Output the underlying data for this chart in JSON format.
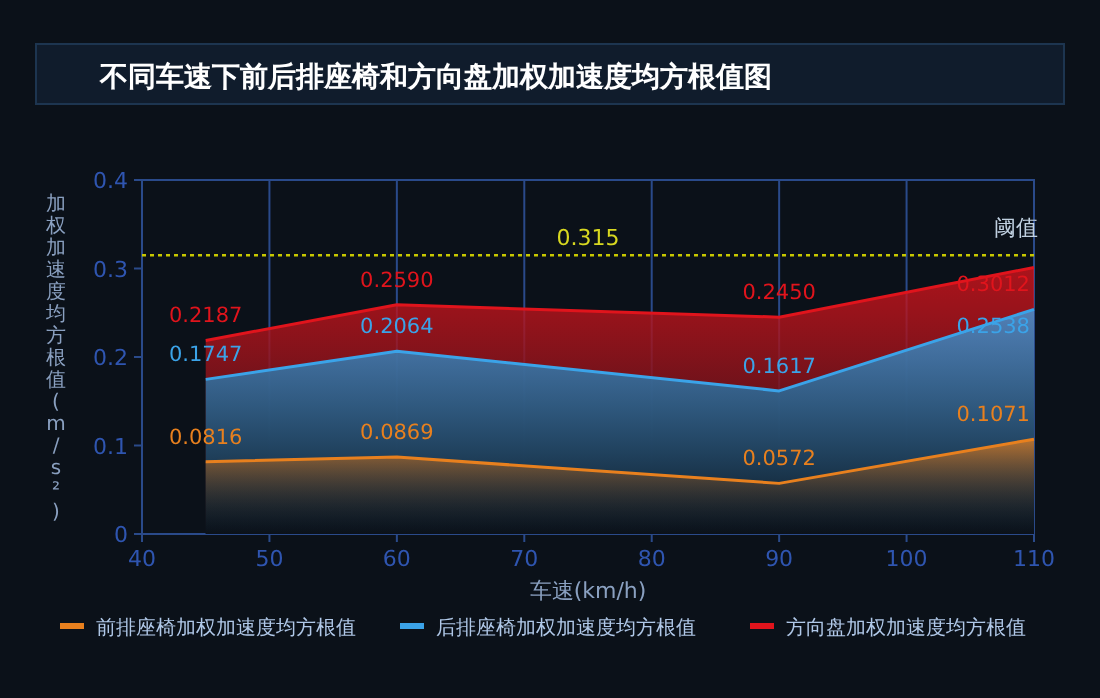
{
  "chart_data": {
    "type": "area",
    "title": "不同车速下前后排座椅和方向盘加权加速度均方根值图",
    "xlabel": "车速(km/h)",
    "ylabel": "加权加速度均方根值(m/s²)",
    "x": [
      45,
      60,
      90,
      110
    ],
    "series": [
      {
        "name": "前排座椅加权加速度均方根值",
        "color": "#e8801e",
        "values": [
          0.0816,
          0.0869,
          0.0572,
          0.1071
        ],
        "value_labels": [
          "0.0816",
          "0.0869",
          "0.0572",
          "0.1071"
        ]
      },
      {
        "name": "后排座椅加权加速度均方根值",
        "color": "#3ba3e8",
        "values": [
          0.1747,
          0.2064,
          0.1617,
          0.2538
        ],
        "value_labels": [
          "0.1747",
          "0.2064",
          "0.1617",
          "0.2538"
        ]
      },
      {
        "name": "方向盘加权加速度均方根值",
        "color": "#e0141c",
        "values": [
          0.2187,
          0.259,
          0.245,
          0.3012
        ],
        "value_labels": [
          "0.2187",
          "0.2590",
          "0.2450",
          "0.3012"
        ]
      }
    ],
    "xlim": [
      40,
      110
    ],
    "xticks": [
      40,
      50,
      60,
      70,
      80,
      90,
      100,
      110
    ],
    "ylim": [
      0,
      0.4
    ],
    "yticks": [
      0,
      0.1,
      0.2,
      0.3,
      0.4
    ],
    "grid": "x",
    "legend": "bottom",
    "ref_lines": [
      {
        "axis": "y",
        "value": 0.315,
        "label": "阈值",
        "color": "#c8c800",
        "line_style": "dotted"
      }
    ],
    "annotations": [
      {
        "text": "0.315",
        "x": 75,
        "y": 0.315
      }
    ]
  }
}
